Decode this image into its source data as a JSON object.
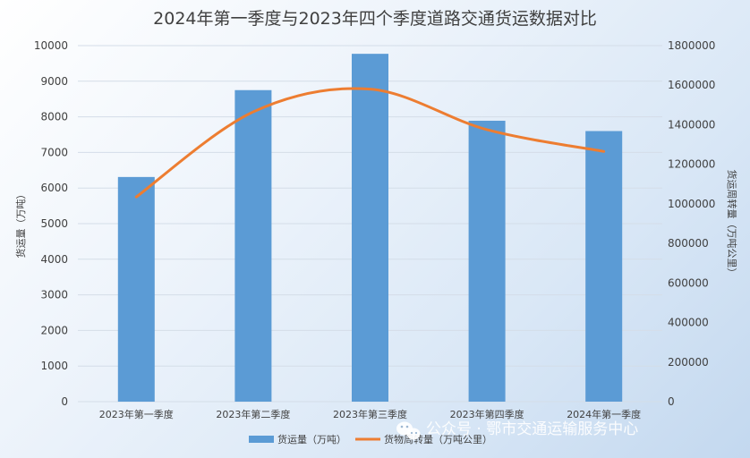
{
  "chart_data": {
    "type": "bar",
    "title": "2024年第一季度与2023年四个季度道路交通货运数据对比",
    "categories": [
      "2023年第一季度",
      "2023年第二季度",
      "2023年第三季度",
      "2023年第四季度",
      "2024年第一季度"
    ],
    "series": [
      {
        "name": "货运量（万吨）",
        "type": "bar",
        "axis": "left",
        "color": "#5b9bd5",
        "values": [
          6310,
          8750,
          9770,
          7890,
          7600
        ]
      },
      {
        "name": "货物周转量（万吨公里）",
        "type": "line",
        "axis": "right",
        "color": "#ed7d31",
        "values": [
          1035000,
          1465000,
          1580000,
          1375000,
          1265000
        ]
      }
    ],
    "ylabel": "货运量（万吨）",
    "y2label": "货运周转量（万吨公里）",
    "ylim": [
      0,
      10000
    ],
    "y2lim": [
      0,
      1800000
    ],
    "yticks": [
      "0",
      "1000",
      "2000",
      "3000",
      "4000",
      "5000",
      "6000",
      "7000",
      "8000",
      "9000",
      "10000"
    ],
    "y2ticks": [
      "0",
      "200000",
      "400000",
      "600000",
      "800000",
      "1000000",
      "1200000",
      "1400000",
      "1600000",
      "1800000"
    ],
    "grid": true,
    "legend_position": "bottom"
  },
  "watermark": {
    "icon": "wechat-icon",
    "text": "公众号 · 鄂市交通运输服务中心"
  }
}
